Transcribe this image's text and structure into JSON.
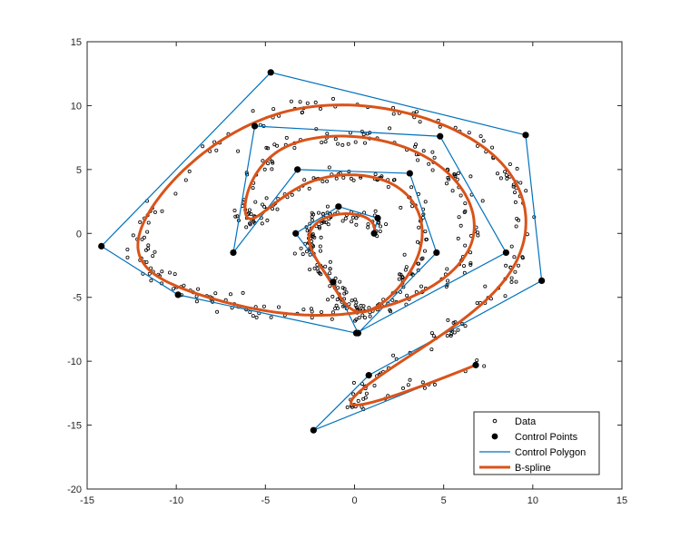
{
  "chart_data": {
    "type": "line",
    "xlim": [
      -15,
      15
    ],
    "ylim": [
      -20,
      15
    ],
    "x_ticks": [
      -15,
      -10,
      -5,
      0,
      5,
      10,
      15
    ],
    "y_ticks": [
      -20,
      -15,
      -10,
      -5,
      0,
      5,
      10,
      15
    ],
    "x_tick_labels": [
      "-15",
      "-10",
      "-5",
      "0",
      "5",
      "10",
      "15"
    ],
    "y_tick_labels": [
      "-20",
      "-15",
      "-10",
      "-5",
      "0",
      "5",
      "10",
      "15"
    ],
    "grid": false,
    "legend_position": "bottom-right",
    "series": [
      {
        "name": "Data",
        "style": "scatter",
        "color": "#000000",
        "description_points": "noisy samples along the spiral"
      },
      {
        "name": "Control Points",
        "style": "markers",
        "color": "#000000",
        "x": [
          1.1,
          1.3,
          -0.9,
          -3.3,
          -1.2,
          0.2,
          4.6,
          3.1,
          -3.2,
          -6.8,
          -5.6,
          4.8,
          8.5,
          0.1,
          -9.9,
          -14.2,
          -4.7,
          9.6,
          10.5,
          0.8,
          -2.3,
          6.8
        ],
        "y": [
          0.0,
          1.2,
          2.1,
          0.0,
          -3.8,
          -7.8,
          -1.5,
          4.7,
          5.0,
          -1.5,
          8.4,
          7.6,
          -1.5,
          -7.8,
          -4.8,
          -1.0,
          12.6,
          7.7,
          -3.7,
          -11.1,
          -15.4,
          -10.3
        ]
      },
      {
        "name": "Control Polygon",
        "style": "line",
        "color": "#0072BD"
      },
      {
        "name": "B-spline",
        "style": "line",
        "color": "#D95319"
      }
    ],
    "legend": [
      "Data",
      "Control Points",
      "Control Polygon",
      "B-spline"
    ]
  }
}
